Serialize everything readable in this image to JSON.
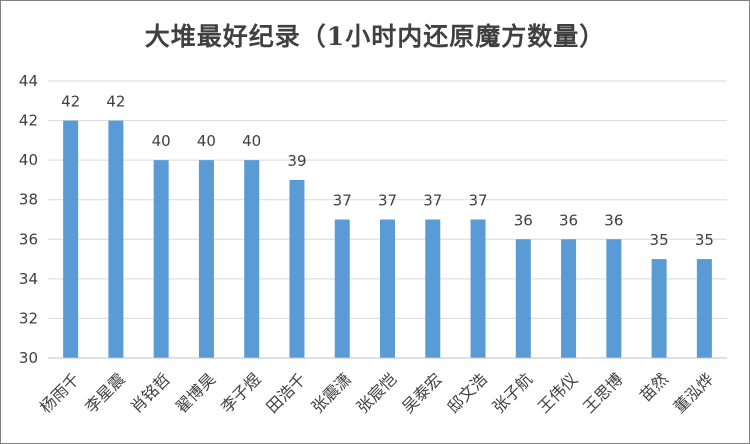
{
  "chart_data": {
    "type": "bar",
    "title": "大堆最好纪录（1小时内还原魔方数量）",
    "categories": [
      "杨雨千",
      "李星震",
      "肖铭哲",
      "翟博昊",
      "李子煜",
      "田浩千",
      "张震潇",
      "张宸恺",
      "吴泰宏",
      "邸文浩",
      "张子航",
      "王伟仪",
      "王思博",
      "苗然",
      "董泓烨"
    ],
    "values": [
      42,
      42,
      40,
      40,
      40,
      39,
      37,
      37,
      37,
      37,
      36,
      36,
      36,
      35,
      35
    ],
    "yticks": [
      "30",
      "32",
      "34",
      "36",
      "38",
      "40",
      "42",
      "44"
    ],
    "ylim": [
      30,
      44
    ],
    "xlabel": "",
    "ylabel": "",
    "grid": true,
    "bar_color": "#5b9bd5",
    "grid_color": "#d9d9d9"
  }
}
